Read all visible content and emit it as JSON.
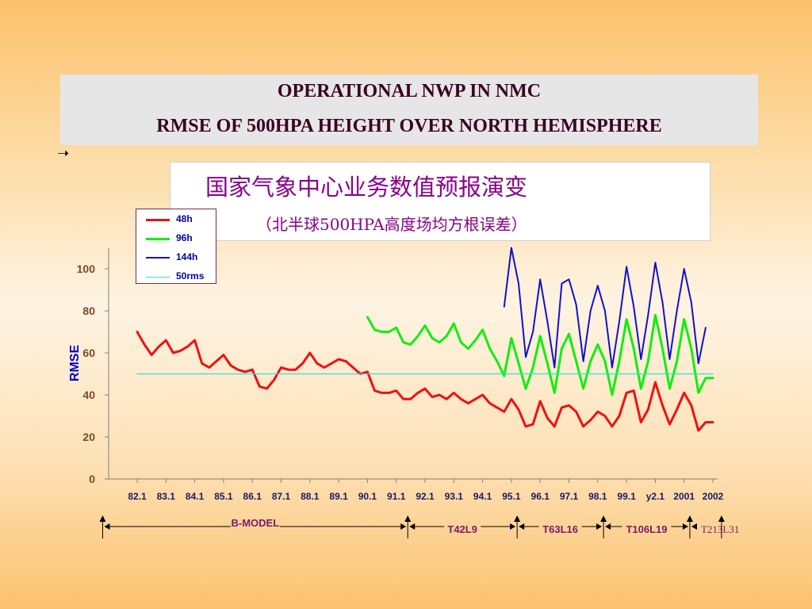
{
  "header": {
    "title_line1": "OPERATIONAL NWP IN NMC",
    "title_line2": "RMSE OF 500HPA HEIGHT OVER NORTH HEMISPHERE",
    "arrow_glyph": "➝"
  },
  "cn_box": {
    "title": "国家气象中心业务数值预报演变",
    "subtitle": "（北半球500HPA高度场均方根误差）"
  },
  "colors": {
    "s48": "#ee1111",
    "s96": "#11ee11",
    "s144": "#1111cc",
    "rms": "#33dddd"
  },
  "chart_data": {
    "type": "line",
    "ylabel": "RMSE",
    "ylim": [
      0,
      110
    ],
    "yticks": [
      0,
      20,
      40,
      60,
      80,
      100
    ],
    "xlim": [
      -0.3,
      20
    ],
    "x_tick_labels": [
      "82.1",
      "83.1",
      "84.1",
      "85.1",
      "86.1",
      "87.1",
      "88.1",
      "89.1",
      "90.1",
      "91.1",
      "92.1",
      "93.1",
      "94.1",
      "95.1",
      "96.1",
      "97.1",
      "98.1",
      "99.1",
      "y2.1",
      "2001",
      "2002"
    ],
    "legend_position": "top-left",
    "series": [
      {
        "name": "48h",
        "color_key": "s48",
        "x": [
          0,
          0.25,
          0.5,
          0.75,
          1,
          1.25,
          1.5,
          1.75,
          2,
          2.25,
          2.5,
          2.75,
          3,
          3.25,
          3.5,
          3.75,
          4,
          4.25,
          4.5,
          4.75,
          5,
          5.25,
          5.5,
          5.75,
          6,
          6.25,
          6.5,
          6.75,
          7,
          7.25,
          7.5,
          7.75,
          8,
          8.25,
          8.5,
          8.75,
          9,
          9.25,
          9.5,
          9.75,
          10,
          10.25,
          10.5,
          10.75,
          11,
          11.25,
          11.5,
          11.75,
          12,
          12.25,
          12.5,
          12.75,
          13,
          13.25,
          13.5,
          13.75,
          14,
          14.25,
          14.5,
          14.75,
          15,
          15.25,
          15.5,
          15.75,
          16,
          16.25,
          16.5,
          16.75,
          17,
          17.25,
          17.5,
          17.75,
          18,
          18.25,
          18.5,
          18.75,
          19,
          19.25,
          19.5,
          19.75,
          20
        ],
        "values": [
          70,
          64,
          59,
          63,
          66,
          60,
          61,
          63,
          66,
          55,
          53,
          56,
          59,
          54,
          52,
          51,
          52,
          44,
          43,
          47,
          53,
          52,
          52,
          55,
          60,
          55,
          53,
          55,
          57,
          56,
          53,
          50,
          51,
          42,
          41,
          41,
          42,
          38,
          38,
          41,
          43,
          39,
          40,
          38,
          41,
          38,
          36,
          38,
          40,
          36,
          34,
          32,
          38,
          33,
          25,
          26,
          37,
          29,
          25,
          34,
          35,
          32,
          25,
          28,
          32,
          30,
          25,
          30,
          41,
          42,
          27,
          33,
          46,
          35,
          26,
          33,
          41,
          35,
          23,
          27,
          27
        ]
      },
      {
        "name": "96h",
        "color_key": "s96",
        "x": [
          8,
          8.25,
          8.5,
          8.75,
          9,
          9.25,
          9.5,
          9.75,
          10,
          10.25,
          10.5,
          10.75,
          11,
          11.25,
          11.5,
          11.75,
          12,
          12.25,
          12.5,
          12.75,
          13,
          13.25,
          13.5,
          13.75,
          14,
          14.25,
          14.5,
          14.75,
          15,
          15.25,
          15.5,
          15.75,
          16,
          16.25,
          16.5,
          16.75,
          17,
          17.25,
          17.5,
          17.75,
          18,
          18.25,
          18.5,
          18.75,
          19,
          19.25,
          19.5,
          19.75,
          20
        ],
        "values": [
          77,
          71,
          70,
          70,
          72,
          65,
          64,
          68,
          73,
          67,
          65,
          68,
          74,
          65,
          62,
          66,
          71,
          62,
          56,
          49,
          67,
          55,
          43,
          53,
          68,
          55,
          41,
          62,
          69,
          56,
          43,
          56,
          64,
          56,
          40,
          56,
          76,
          62,
          43,
          56,
          78,
          62,
          43,
          56,
          76,
          62,
          41,
          48,
          48
        ]
      },
      {
        "name": "144h",
        "color_key": "s144",
        "x": [
          12.75,
          13,
          13.25,
          13.5,
          13.75,
          14,
          14.25,
          14.5,
          14.75,
          15,
          15.25,
          15.5,
          15.75,
          16,
          16.25,
          16.5,
          16.75,
          17,
          17.25,
          17.5,
          17.75,
          18,
          18.25,
          18.5,
          18.75,
          19,
          19.25,
          19.5,
          19.75
        ],
        "values": [
          82,
          110,
          93,
          58,
          70,
          95,
          75,
          53,
          93,
          95,
          83,
          56,
          80,
          92,
          80,
          53,
          75,
          101,
          82,
          57,
          78,
          103,
          84,
          57,
          80,
          100,
          84,
          55,
          72
        ]
      },
      {
        "name": "50rms",
        "color_key": "rms",
        "x": [
          0,
          20
        ],
        "values": [
          50,
          50
        ]
      }
    ],
    "model_periods": [
      {
        "label": "B-MODEL",
        "start": -1.2,
        "end": 9.4
      },
      {
        "label": "T42L9",
        "start": 9.4,
        "end": 13.2
      },
      {
        "label": "T63L16",
        "start": 13.2,
        "end": 16.2
      },
      {
        "label": "T106L19",
        "start": 16.2,
        "end": 19.2
      },
      {
        "label": "T213L31",
        "start": 19.2,
        "end": 20.3
      }
    ]
  }
}
